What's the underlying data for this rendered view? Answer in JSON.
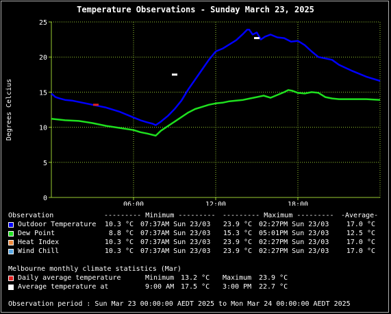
{
  "title": "Temperature Observations - Sunday March 23, 2025",
  "colors": {
    "background": "#000000",
    "plot_bg": "#000000",
    "grid": "#9acd32",
    "text": "#ffffff",
    "outdoor": "#0000ff",
    "dewpoint": "#1fe01f",
    "heat_index": "#f08a3c",
    "wind_chill": "#5aaae6",
    "daily_avg": "#e02020",
    "avg_at": "#ffffff"
  },
  "chart_data": {
    "type": "line",
    "title": "Temperature Observations - Sunday March 23, 2025",
    "ylabel": "Degrees Celcius",
    "xlabel": "",
    "xlim": [
      0,
      24
    ],
    "ylim": [
      0,
      25
    ],
    "x_ticks": [
      6,
      12,
      18
    ],
    "x_tick_labels": [
      "06:00",
      "12:00",
      "18:00"
    ],
    "y_ticks": [
      0,
      5,
      10,
      15,
      20,
      25
    ],
    "grid": true,
    "series": [
      {
        "name": "Outdoor Temperature",
        "color_key": "outdoor",
        "x": [
          0,
          0.3,
          0.6,
          1,
          1.5,
          2,
          3,
          4,
          5,
          6,
          6.5,
          7,
          7.4,
          7.62,
          8,
          8.5,
          9,
          9.5,
          10,
          10.5,
          11,
          11.5,
          12,
          12.5,
          13,
          13.5,
          14,
          14.3,
          14.45,
          14.7,
          15,
          15.3,
          15.6,
          16,
          16.5,
          17,
          17.5,
          18,
          18.5,
          19,
          19.5,
          20,
          20.5,
          21,
          22,
          23,
          24
        ],
        "y": [
          14.8,
          14.3,
          14.1,
          13.9,
          13.8,
          13.6,
          13.2,
          12.8,
          12.2,
          11.4,
          11.0,
          10.7,
          10.5,
          10.3,
          10.8,
          11.6,
          12.6,
          13.8,
          15.4,
          16.8,
          18.2,
          19.6,
          20.8,
          21.2,
          21.8,
          22.4,
          23.3,
          23.9,
          23.9,
          23.2,
          23.5,
          22.5,
          22.9,
          23.2,
          22.8,
          22.7,
          22.2,
          22.3,
          21.7,
          20.8,
          20.0,
          19.8,
          19.6,
          18.9,
          18.0,
          17.2,
          16.6
        ]
      },
      {
        "name": "Dew Point",
        "color_key": "dewpoint",
        "x": [
          0,
          1,
          2,
          3,
          4,
          5,
          6,
          6.5,
          7,
          7.62,
          8,
          9,
          10,
          10.5,
          11,
          11.5,
          12,
          12.5,
          13,
          13.5,
          14,
          14.5,
          15,
          15.5,
          16,
          16.5,
          17,
          17.3,
          17.6,
          18,
          18.5,
          19,
          19.5,
          20,
          20.5,
          21,
          22,
          23,
          24
        ],
        "y": [
          11.2,
          11.0,
          10.9,
          10.6,
          10.2,
          9.9,
          9.6,
          9.3,
          9.1,
          8.8,
          9.5,
          10.8,
          12.1,
          12.6,
          12.9,
          13.2,
          13.4,
          13.5,
          13.7,
          13.8,
          13.9,
          14.1,
          14.3,
          14.5,
          14.2,
          14.6,
          15.0,
          15.3,
          15.2,
          14.9,
          14.8,
          15.0,
          14.9,
          14.3,
          14.1,
          14.0,
          14.0,
          14.0,
          13.9
        ]
      }
    ],
    "markers": [
      {
        "name": "Daily average minimum",
        "color_key": "daily_avg",
        "x": 3.25,
        "y": 13.2
      },
      {
        "name": "Average temperature at 9:00 AM",
        "color_key": "avg_at",
        "x": 9.0,
        "y": 17.5
      },
      {
        "name": "Average temperature at 3:00 PM",
        "color_key": "avg_at",
        "x": 15.0,
        "y": 22.7
      }
    ]
  },
  "table": {
    "header": {
      "observation": "Observation",
      "minimum": "--------- Minimum ---------",
      "maximum": "--------- Maximum ---------",
      "average": "-Average-"
    },
    "rows": [
      {
        "color_key": "outdoor",
        "label": "Outdoor Temperature",
        "min_val": "10.3 °C",
        "min_time": "07:37AM Sun 23/03",
        "max_val": "23.9 °C",
        "max_time": "02:27PM Sun 23/03",
        "avg": "17.0 °C"
      },
      {
        "color_key": "dewpoint",
        "label": "Dew Point",
        "min_val": "8.8 °C",
        "min_time": "07:37AM Sun 23/03",
        "max_val": "15.3 °C",
        "max_time": "05:01PM Sun 23/03",
        "avg": "12.5 °C"
      },
      {
        "color_key": "heat_index",
        "label": "Heat Index",
        "min_val": "10.3 °C",
        "min_time": "07:37AM Sun 23/03",
        "max_val": "23.9 °C",
        "max_time": "02:27PM Sun 23/03",
        "avg": "17.0 °C"
      },
      {
        "color_key": "wind_chill",
        "label": "Wind Chill",
        "min_val": "10.3 °C",
        "min_time": "07:37AM Sun 23/03",
        "max_val": "23.9 °C",
        "max_time": "02:27PM Sun 23/03",
        "avg": "17.0 °C"
      }
    ]
  },
  "climate": {
    "heading": "Melbourne monthly climate statistics (Mar)",
    "daily_avg": {
      "label": "Daily average temperature",
      "min_label": "Minimum",
      "min_val": "13.2 °C",
      "max_label": "Maximum",
      "max_val": "23.9 °C"
    },
    "avg_at": {
      "label": "Average temperature at",
      "t1": "9:00 AM",
      "v1": "17.5 °C",
      "t2": "3:00 PM",
      "v2": "22.7 °C"
    }
  },
  "period": "Observation period : Sun Mar 23 00:00:00 AEDT 2025 to Mon Mar 24 00:00:00 AEDT 2025"
}
